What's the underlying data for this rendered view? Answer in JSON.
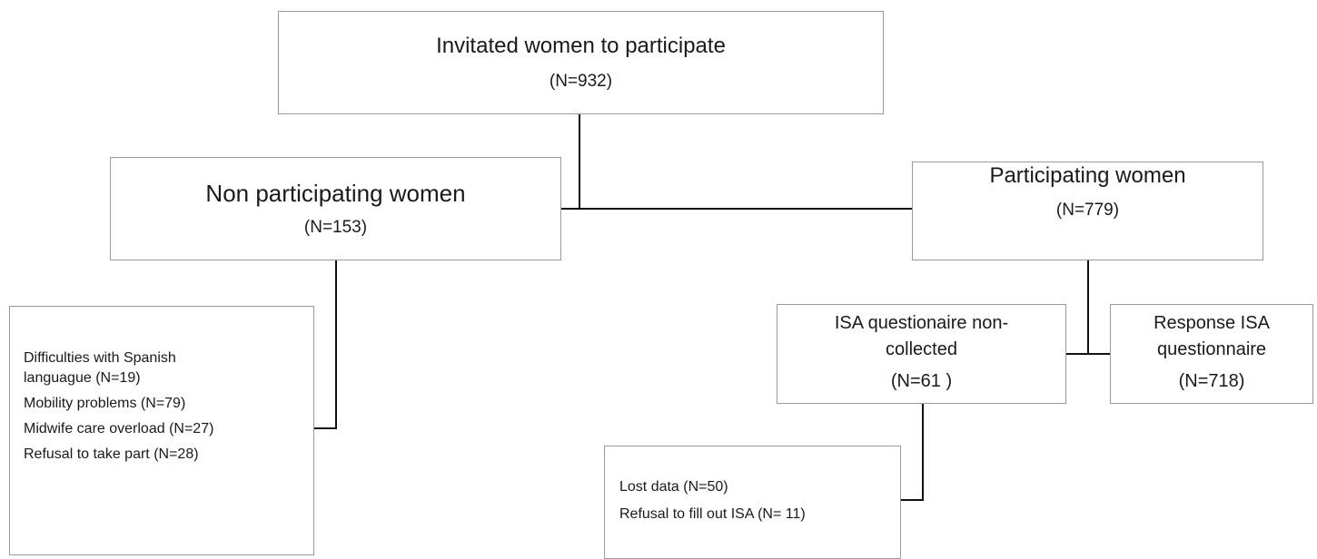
{
  "invited": {
    "title": "Invitated women to participate",
    "count": "(N=932)"
  },
  "non_participating": {
    "title": "Non participating women",
    "count": "(N=153)",
    "reasons": [
      "Difficulties with Spanish",
      "languague (N=19)",
      "Mobility problems (N=79)",
      "Midwife care overload (N=27)",
      "Refusal to take part (N=28)"
    ]
  },
  "participating": {
    "title": "Participating women",
    "count": "(N=779)"
  },
  "isa_noncollected": {
    "title_line1": "ISA questionaire non-",
    "title_line2": "collected",
    "count": "(N=61 )",
    "reasons": [
      "Lost data (N=50)",
      "Refusal to fill out ISA (N= 11)"
    ]
  },
  "response_isa": {
    "title_line1": "Response ISA",
    "title_line2": "questionnaire",
    "count": "(N=718)"
  }
}
